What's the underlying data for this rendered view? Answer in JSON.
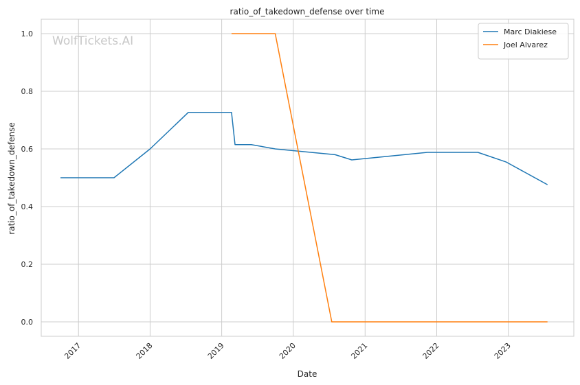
{
  "chart_data": {
    "type": "line",
    "title": "ratio_of_takedown_defense over time",
    "xlabel": "Date",
    "ylabel": "ratio_of_takedown_defense",
    "watermark": "WolfTickets.AI",
    "x_ticks": [
      "2017",
      "2018",
      "2019",
      "2020",
      "2021",
      "2022",
      "2023"
    ],
    "y_ticks": [
      "0.0",
      "0.2",
      "0.4",
      "0.6",
      "0.8",
      "1.0"
    ],
    "xlim": [
      "2016-06-25",
      "2023-12-01"
    ],
    "ylim": [
      -0.05,
      1.05
    ],
    "grid": true,
    "legend_position": "top-right",
    "series": [
      {
        "name": "Marc Diakiese",
        "color": "#1f77b4",
        "points": [
          [
            "2016-10-01",
            0.5
          ],
          [
            "2017-07-01",
            0.5
          ],
          [
            "2018-01-01",
            0.6
          ],
          [
            "2018-07-15",
            0.727
          ],
          [
            "2019-02-20",
            0.727
          ],
          [
            "2019-03-10",
            0.615
          ],
          [
            "2019-06-01",
            0.615
          ],
          [
            "2019-10-01",
            0.6
          ],
          [
            "2020-08-01",
            0.58
          ],
          [
            "2020-10-25",
            0.562
          ],
          [
            "2021-11-15",
            0.588
          ],
          [
            "2022-07-30",
            0.588
          ],
          [
            "2022-12-20",
            0.555
          ],
          [
            "2023-07-20",
            0.476
          ]
        ]
      },
      {
        "name": "Joel Alvarez",
        "color": "#ff7f0e",
        "points": [
          [
            "2019-02-20",
            1.0
          ],
          [
            "2019-10-01",
            1.0
          ],
          [
            "2020-07-15",
            0.0
          ],
          [
            "2023-07-20",
            0.0
          ]
        ]
      }
    ]
  }
}
